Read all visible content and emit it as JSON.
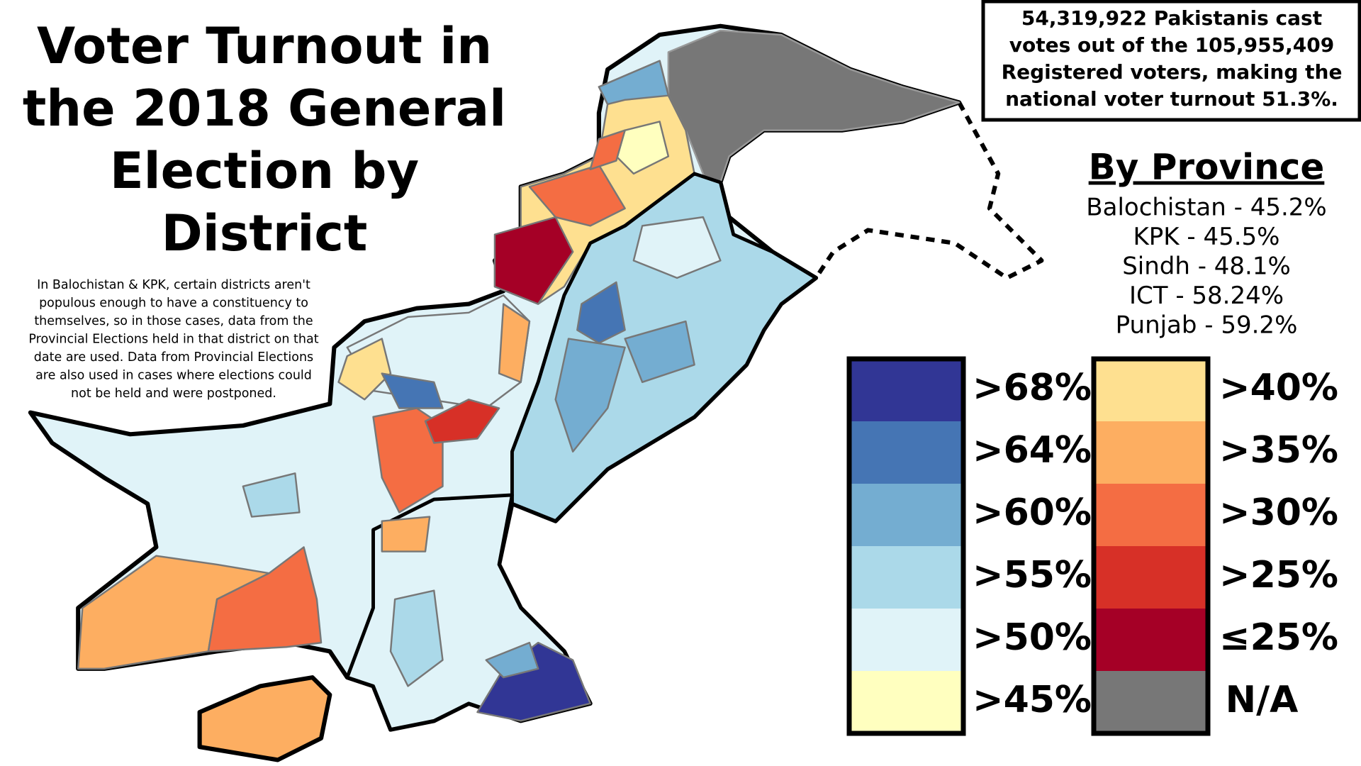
{
  "title_lines": [
    "Voter Turnout in",
    "the 2018 General",
    "Election by",
    "District"
  ],
  "note_lines": [
    "In Balochistan & KPK, certain districts aren't",
    "populous enough to have a constituency to",
    "themselves, so in those cases, data from the",
    "Provincial Elections held in that district on that",
    "date are used. Data from Provincial Elections",
    "are also used in cases where elections could",
    "not be held and were postponed."
  ],
  "summary_lines": [
    "54,319,922 Pakistanis cast",
    "votes out of the 105,955,409",
    "Registered voters, making the",
    "national voter turnout 51.3%."
  ],
  "province_heading": "By Province",
  "provinces": [
    "Balochistan - 45.2%",
    "KPK - 45.5%",
    "Sindh - 48.1%",
    "ICT - 58.24%",
    "Punjab - 59.2%"
  ],
  "legend": {
    "columns": [
      [
        {
          "label": ">68%",
          "color": "#313695"
        },
        {
          "label": ">64%",
          "color": "#4575b4"
        },
        {
          "label": ">60%",
          "color": "#74add1"
        },
        {
          "label": ">55%",
          "color": "#abd9e9"
        },
        {
          "label": ">50%",
          "color": "#e0f3f8"
        },
        {
          "label": ">45%",
          "color": "#ffffbf"
        }
      ],
      [
        {
          "label": ">40%",
          "color": "#fee090"
        },
        {
          "label": ">35%",
          "color": "#fdae61"
        },
        {
          "label": ">30%",
          "color": "#f46d43"
        },
        {
          "label": ">25%",
          "color": "#d73027"
        },
        {
          "label": "≤25%",
          "color": "#a50026"
        },
        {
          "label": "N/A",
          "color": "#777777"
        }
      ]
    ]
  }
}
